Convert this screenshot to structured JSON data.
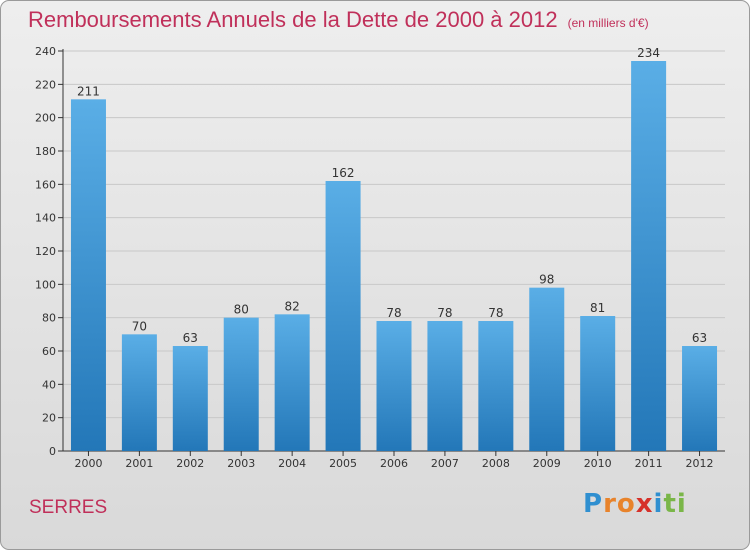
{
  "header": {
    "title": "Remboursements Annuels de la Dette de 2000 à 2012",
    "unit": "(en milliers d'€)"
  },
  "footer": {
    "commune": "SERRES",
    "logo_text": "Proxiti",
    "logo_letters": [
      {
        "ch": "P",
        "color": "#2f8fd0"
      },
      {
        "ch": "r",
        "color": "#e8832b"
      },
      {
        "ch": "o",
        "color": "#e8832b"
      },
      {
        "ch": "x",
        "color": "#d6312a"
      },
      {
        "ch": "i",
        "color": "#2f8fd0"
      },
      {
        "ch": "t",
        "color": "#7ab648"
      },
      {
        "ch": "i",
        "color": "#7ab648"
      }
    ]
  },
  "colors": {
    "bar_top": "#5aaee6",
    "bar_bottom": "#2377b8",
    "accent": "#c0305a"
  },
  "chart_data": {
    "type": "bar",
    "title": "Remboursements Annuels de la Dette de 2000 à 2012",
    "subtitle": "(en milliers d'€)",
    "categories": [
      "2000",
      "2001",
      "2002",
      "2003",
      "2004",
      "2005",
      "2006",
      "2007",
      "2008",
      "2009",
      "2010",
      "2011",
      "2012"
    ],
    "values": [
      211,
      70,
      63,
      80,
      82,
      162,
      78,
      78,
      78,
      98,
      81,
      234,
      63
    ],
    "ylim": [
      0,
      240
    ],
    "yticks": [
      0,
      20,
      40,
      60,
      80,
      100,
      120,
      140,
      160,
      180,
      200,
      220,
      240
    ],
    "grid": true,
    "xlabel": "",
    "ylabel": ""
  }
}
